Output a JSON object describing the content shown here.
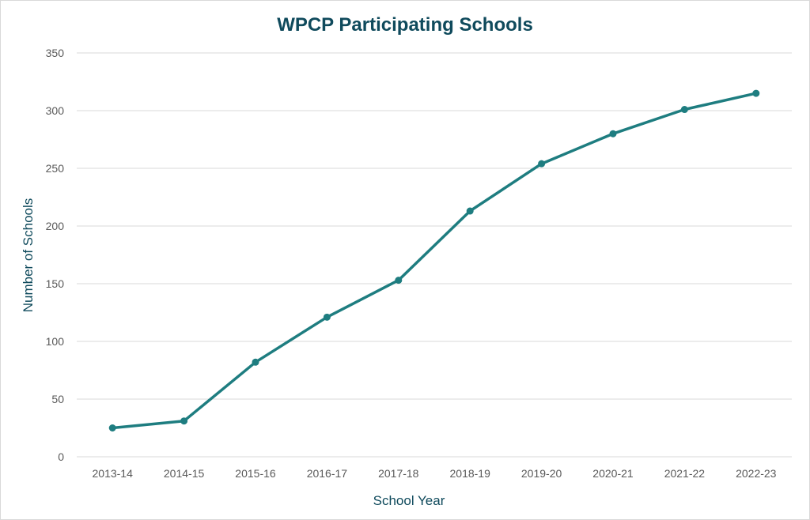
{
  "chart_data": {
    "type": "line",
    "title": "WPCP Participating Schools",
    "xlabel": "School Year",
    "ylabel": "Number of Schools",
    "categories": [
      "2013-14",
      "2014-15",
      "2015-16",
      "2016-17",
      "2017-18",
      "2018-19",
      "2019-20",
      "2020-21",
      "2021-22",
      "2022-23"
    ],
    "series": [
      {
        "values": [
          25,
          31,
          82,
          121,
          153,
          213,
          254,
          280,
          301,
          315
        ]
      }
    ],
    "ylim": [
      0,
      350
    ],
    "yticks": [
      0,
      50,
      100,
      150,
      200,
      250,
      300,
      350
    ],
    "grid": true,
    "legend": "none",
    "markers": true
  },
  "colors": {
    "line": "#1e7d80",
    "title": "#0f4a5c",
    "axis_title": "#0f4a5c",
    "gridline": "#d9d9d9",
    "tick_text": "#595959"
  }
}
